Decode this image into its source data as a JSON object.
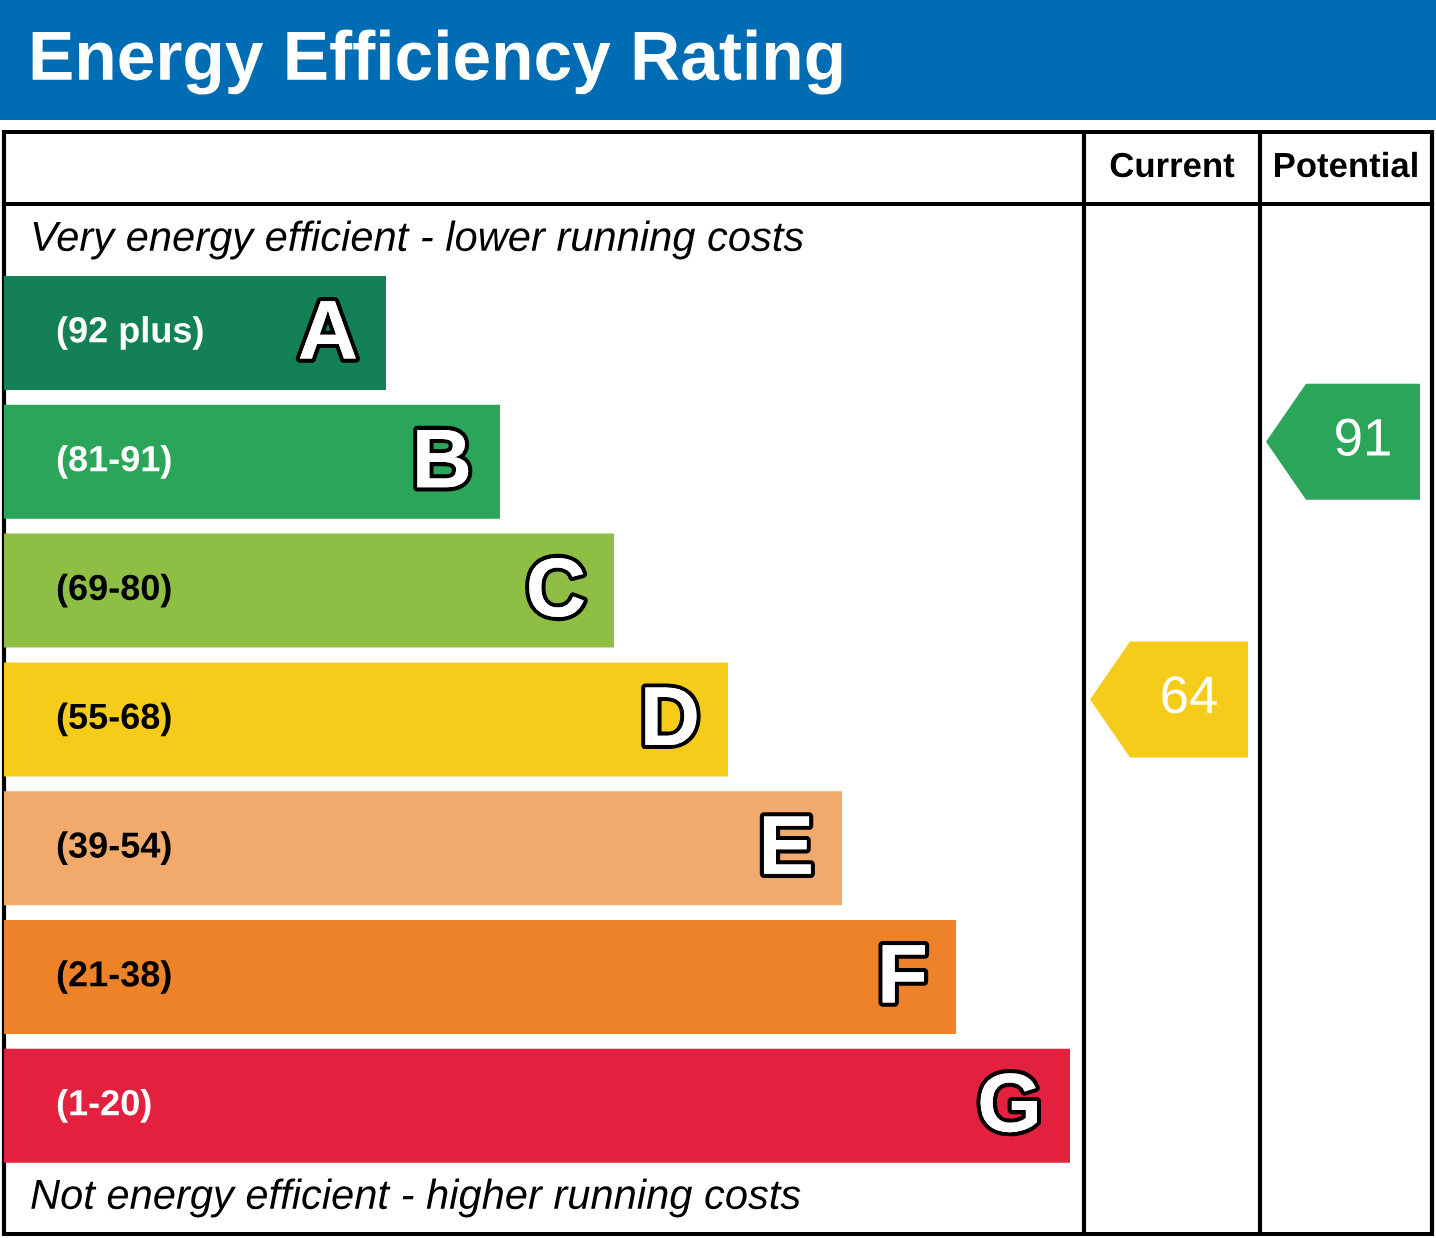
{
  "chart_data": {
    "type": "other",
    "title": "Energy Efficiency Rating",
    "data_labels": true,
    "categories": [
      "A",
      "B",
      "C",
      "D",
      "E",
      "F",
      "G"
    ],
    "value_labels": [
      "(92 plus)",
      "(81-91)",
      "(69-80)",
      "(55-68)",
      "(39-54)",
      "(21-38)",
      "(1-20)"
    ],
    "colors": [
      "#138055",
      "#2ba55a",
      "#8fbe45",
      "#f6cc1a",
      "#f2aa6c",
      "#ee8229",
      "#e3213e"
    ],
    "annotations": [
      "Current",
      "Potential",
      "Very energy efficient - lower running costs",
      "Not energy efficient - higher running costs"
    ],
    "series": [
      {
        "color": "#f6cc1a",
        "values": [
          null,
          null,
          null,
          64,
          null,
          null,
          null
        ]
      },
      {
        "color": "#2ba55a",
        "values": [
          null,
          91,
          null,
          null,
          null,
          null,
          null
        ]
      }
    ]
  }
}
